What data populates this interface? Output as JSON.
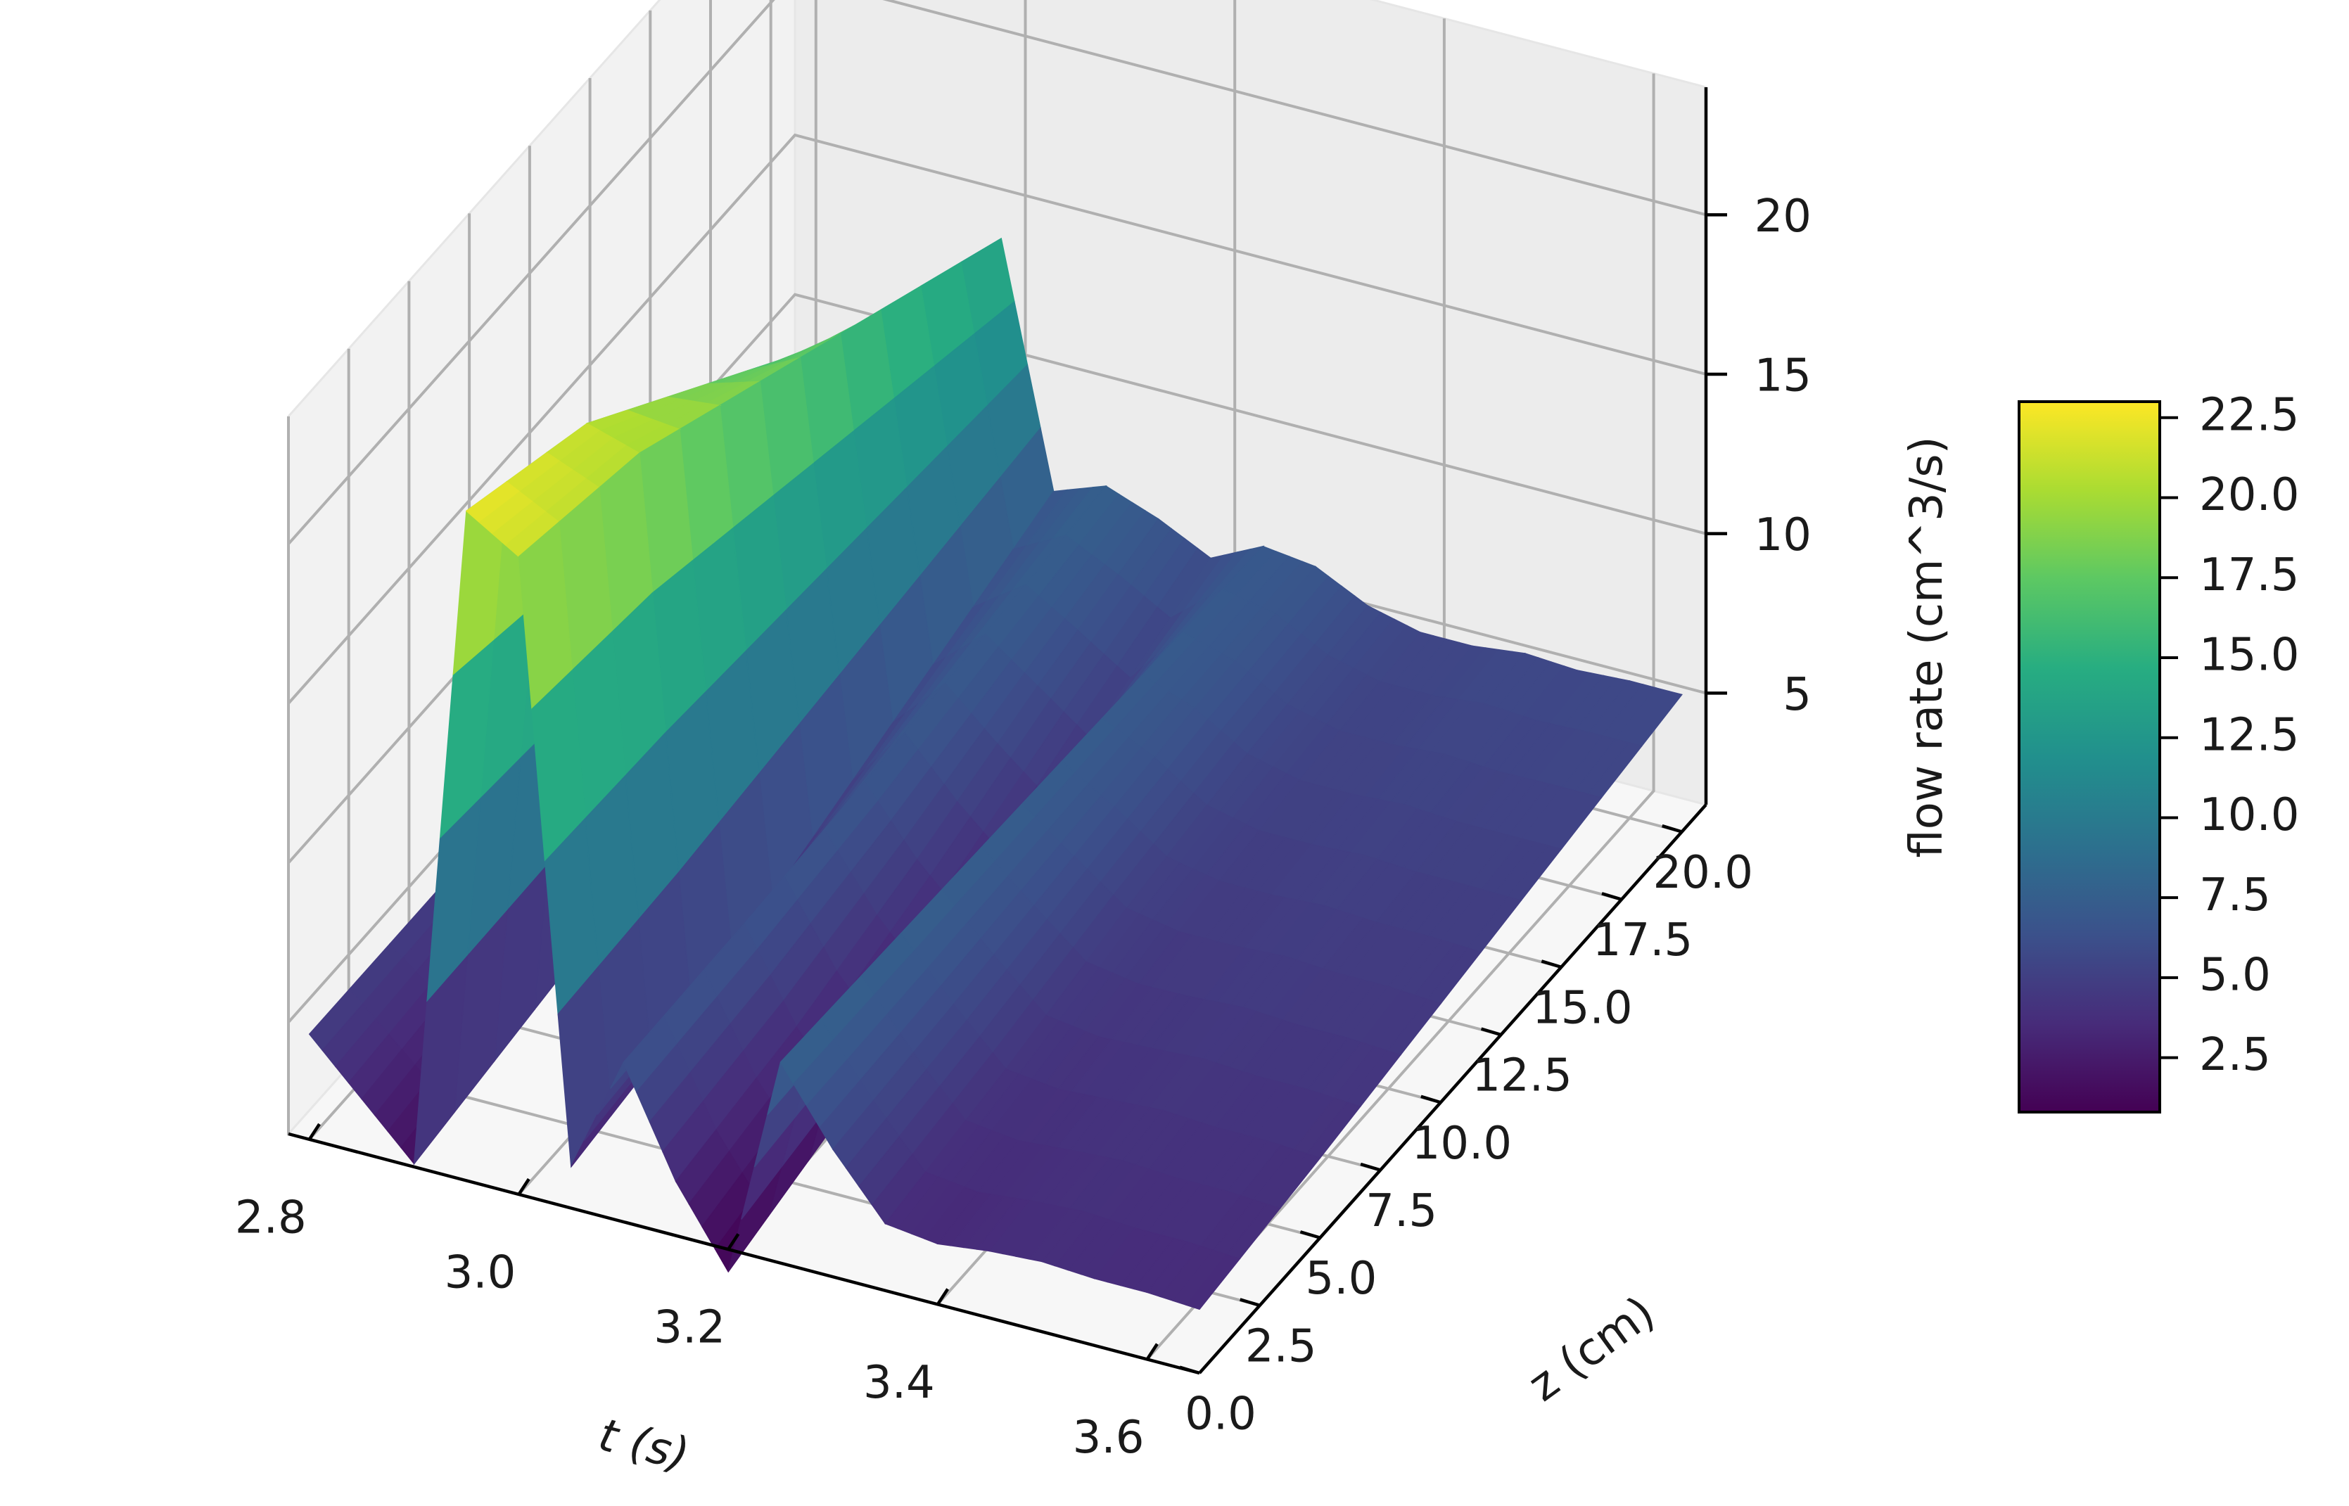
{
  "chart_data": {
    "type": "surface3d",
    "title": "",
    "xlabel": "t (s)",
    "ylabel": "z (cm)",
    "zlabel": "flow rate (cm^3/s)",
    "colormap": "viridis",
    "grid": true,
    "legend": "colorbar right",
    "xlim": [
      2.78,
      3.65
    ],
    "ylim": [
      0,
      21
    ],
    "zlim": [
      1.5,
      24
    ],
    "x_ticks": [
      "2.8",
      "3.0",
      "3.2",
      "3.4",
      "3.6"
    ],
    "y_ticks": [
      "0.0",
      "2.5",
      "5.0",
      "7.5",
      "10.0",
      "12.5",
      "15.0",
      "17.5",
      "20.0"
    ],
    "z_ticks": [
      "5",
      "10",
      "15",
      "20"
    ],
    "colorbar_ticks": [
      "2.5",
      "5.0",
      "7.5",
      "10.0",
      "12.5",
      "15.0",
      "17.5",
      "20.0",
      "22.5"
    ],
    "colorbar_range": [
      0.8,
      23.0
    ],
    "z_grid": [
      0.0,
      5.0,
      10.0,
      15.0,
      20.0
    ],
    "t": [
      2.8,
      2.85,
      2.9,
      2.95,
      3.0,
      3.05,
      3.1,
      3.15,
      3.2,
      3.25,
      3.3,
      3.35,
      3.4,
      3.45,
      3.5,
      3.55,
      3.6,
      3.65
    ],
    "flow_rate": [
      [
        4.8,
        3.2,
        1.6,
        22.5,
        21.5,
        2.8,
        6.5,
        3.2,
        0.8,
        7.8,
        5.5,
        3.6,
        3.4,
        3.6,
        3.7,
        3.6,
        3.6,
        3.5
      ],
      [
        4.8,
        3.6,
        2.2,
        21.0,
        20.5,
        3.4,
        6.6,
        3.8,
        1.8,
        7.6,
        5.8,
        4.2,
        4.0,
        4.1,
        4.2,
        4.1,
        4.1,
        4.0
      ],
      [
        4.8,
        4.0,
        2.8,
        18.0,
        18.5,
        4.6,
        6.8,
        4.8,
        3.2,
        7.4,
        6.2,
        5.0,
        4.7,
        4.7,
        4.8,
        4.7,
        4.7,
        4.6
      ],
      [
        4.8,
        4.3,
        3.4,
        15.0,
        16.5,
        5.8,
        7.2,
        6.0,
        4.8,
        7.2,
        6.6,
        5.6,
        5.2,
        5.2,
        5.3,
        5.2,
        5.2,
        5.2
      ],
      [
        4.8,
        4.6,
        4.0,
        11.5,
        14.5,
        7.0,
        7.6,
        7.0,
        6.2,
        7.0,
        6.8,
        6.0,
        5.6,
        5.6,
        5.8,
        5.7,
        5.8,
        5.8
      ]
    ]
  }
}
